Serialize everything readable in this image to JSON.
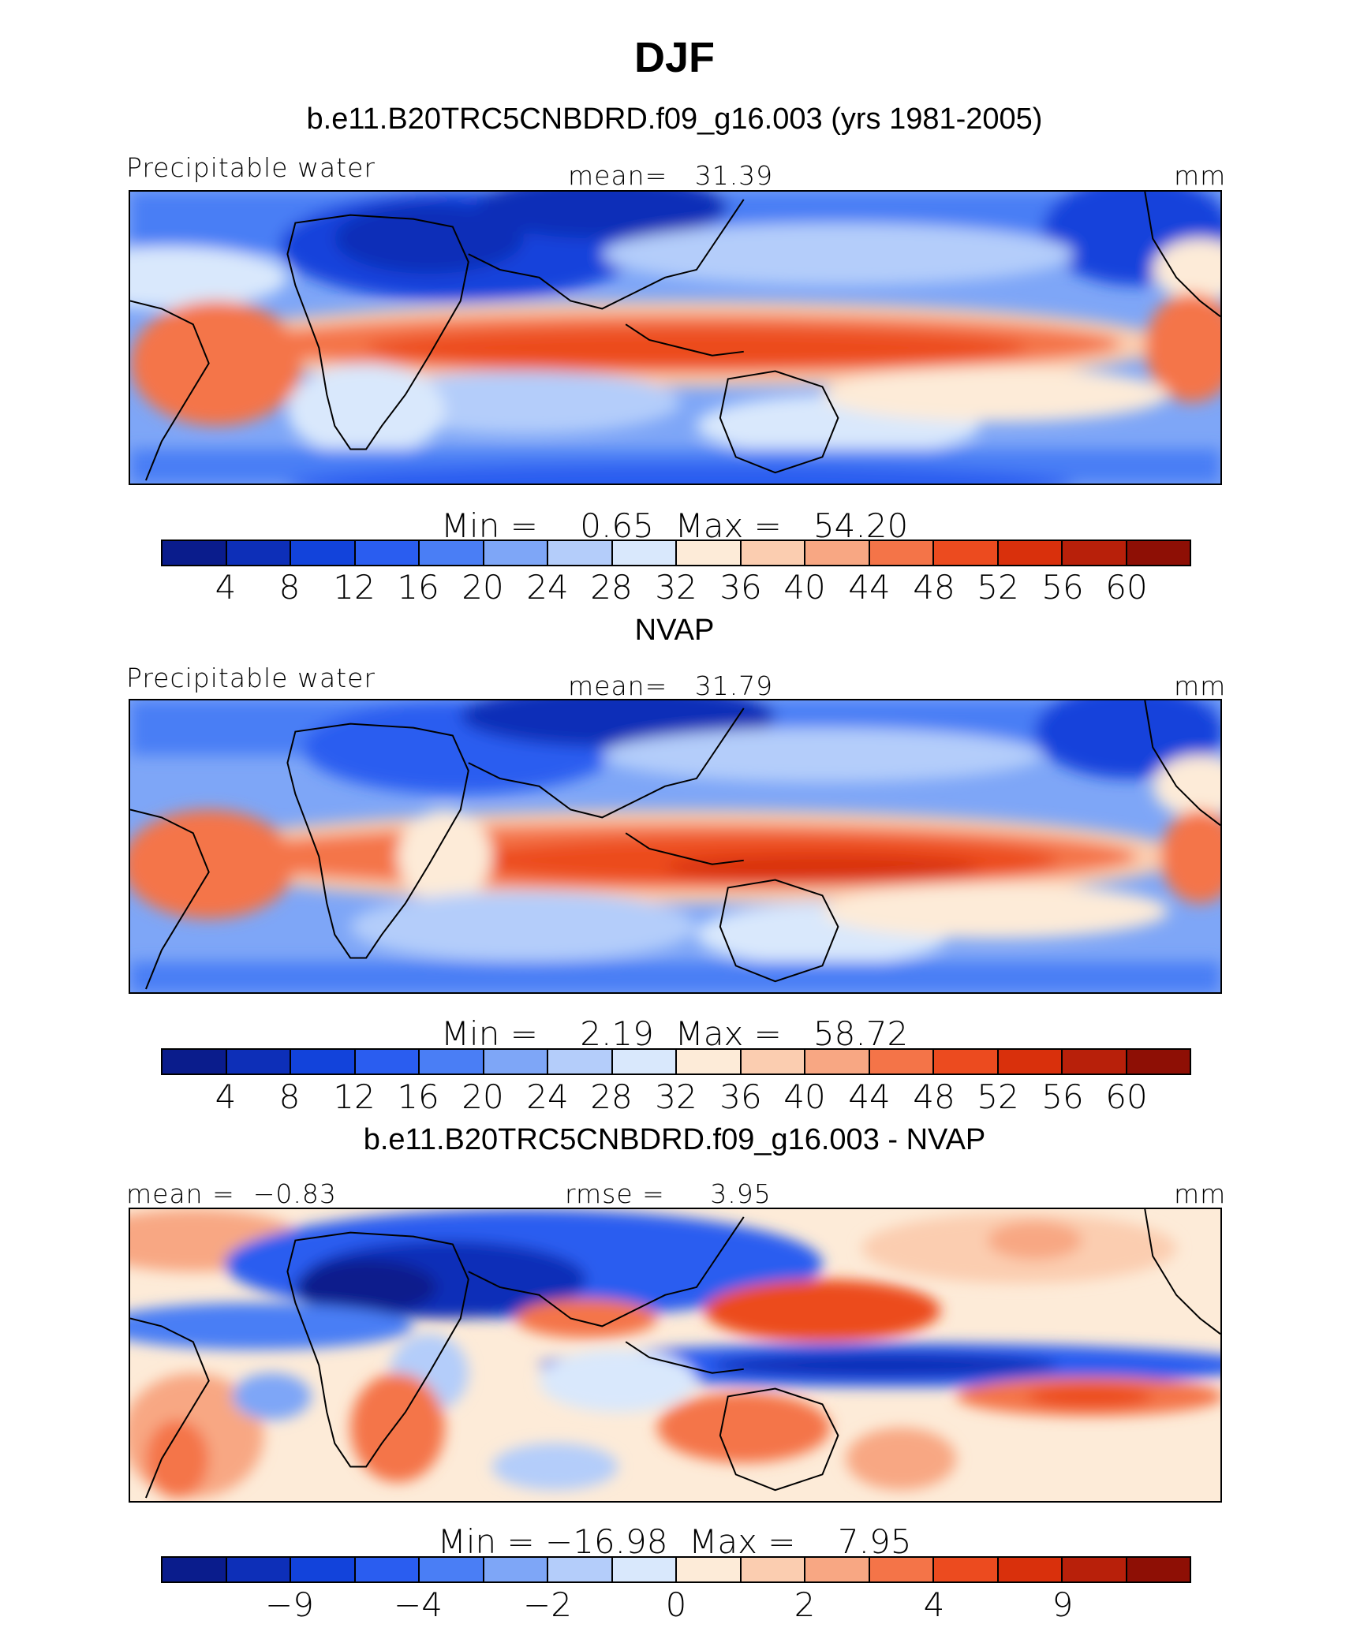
{
  "title": "DJF",
  "colors": [
    "#0a1c8c",
    "#0d2fb8",
    "#1243db",
    "#2a5df0",
    "#4a7ef5",
    "#7ea6f7",
    "#b4cdfa",
    "#d9e8fc",
    "#fdebd8",
    "#fbcdb0",
    "#f8a783",
    "#f47448",
    "#ec4b1f",
    "#d9300c",
    "#b8200a",
    "#8e0f05"
  ],
  "panels": [
    {
      "subtitle": "b.e11.B20TRC5CNBDRD.f09_g16.003 (yrs 1981-2005)",
      "left_label": "Precipitable water",
      "center_label": "mean=   31.39",
      "right_label": "mm",
      "minmax": "Min =    0.65  Max =   54.20",
      "tick_labels": [
        "4",
        "8",
        "12",
        "16",
        "20",
        "24",
        "28",
        "32",
        "36",
        "40",
        "44",
        "48",
        "52",
        "56",
        "60"
      ],
      "map_values": {
        "north_band": [
          8,
          10,
          6,
          14,
          18,
          22
        ],
        "tropical_belt": [
          46,
          52,
          48,
          42
        ],
        "south_band": [
          22,
          28,
          18
        ]
      }
    },
    {
      "subtitle": "NVAP",
      "left_label": "Precipitable water",
      "center_label": "mean=   31.79",
      "right_label": "mm",
      "minmax": "Min =    2.19  Max =   58.72",
      "tick_labels": [
        "4",
        "8",
        "12",
        "16",
        "20",
        "24",
        "28",
        "32",
        "36",
        "40",
        "44",
        "48",
        "52",
        "56",
        "60"
      ],
      "map_values": {
        "north_band": [
          10,
          12,
          8,
          14,
          18,
          20
        ],
        "tropical_belt": [
          48,
          56,
          52,
          46
        ],
        "south_band": [
          24,
          26,
          20
        ]
      }
    },
    {
      "subtitle": "b.e11.B20TRC5CNBDRD.f09_g16.003 - NVAP",
      "left_label": "mean =  −0.83",
      "center_label": "rmse =     3.95",
      "right_label": "mm",
      "minmax": "Min = −16.98  Max =    7.95",
      "tick_labels": [
        "−9",
        "−4",
        "−2",
        "0",
        "2",
        "4",
        "9"
      ],
      "map_values": {
        "north_band": [
          2,
          -6,
          -9,
          3,
          1,
          2
        ],
        "tropical_belt": [
          -4,
          -9,
          -6,
          4
        ],
        "south_band": [
          3,
          4,
          -2
        ]
      }
    }
  ]
}
